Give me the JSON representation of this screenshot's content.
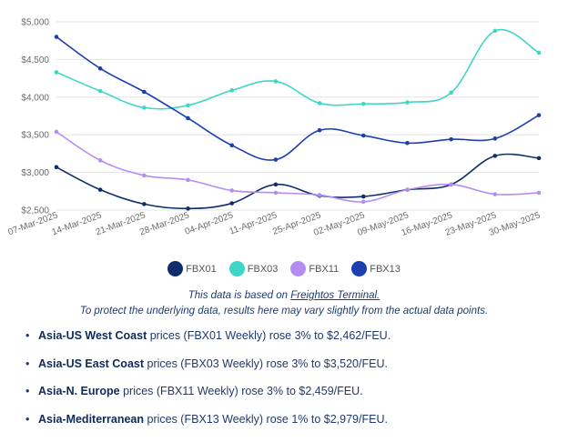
{
  "chart_data": {
    "type": "line",
    "categories": [
      "07-Mar-2025",
      "14-Mar-2025",
      "21-Mar-2025",
      "28-Mar-2025",
      "04-Apr-2025",
      "11-Apr-2025",
      "25-Apr-2025",
      "02-May-2025",
      "09-May-2025",
      "16-May-2025",
      "23-May-2025",
      "30-May-2025"
    ],
    "ylim": [
      2500,
      5000
    ],
    "yticks": [
      2500,
      3000,
      3500,
      4000,
      4500,
      5000
    ],
    "ytick_labels": [
      "$2,500",
      "$3,000",
      "$3,500",
      "$4,000",
      "$4,500",
      "$5,000"
    ],
    "grid": true,
    "legend_position": "bottom",
    "series": [
      {
        "name": "FBX01",
        "color": "#0f2d6b",
        "values": [
          3070,
          2770,
          2580,
          2520,
          2590,
          2840,
          2690,
          2680,
          2770,
          2840,
          3220,
          3190
        ]
      },
      {
        "name": "FBX03",
        "color": "#3dd6c8",
        "values": [
          4330,
          4080,
          3860,
          3890,
          4090,
          4210,
          3920,
          3910,
          3930,
          4060,
          4880,
          4590
        ]
      },
      {
        "name": "FBX11",
        "color": "#b58df2",
        "values": [
          3540,
          3160,
          2960,
          2900,
          2760,
          2730,
          2700,
          2610,
          2770,
          2840,
          2710,
          2730
        ]
      },
      {
        "name": "FBX13",
        "color": "#1c3fb0",
        "values": [
          4800,
          4380,
          4070,
          3720,
          3360,
          3170,
          3560,
          3490,
          3390,
          3440,
          3450,
          3760
        ]
      }
    ]
  },
  "note": {
    "line1_prefix": "This data is based on ",
    "line1_link": "Freightos Terminal.",
    "line2": "To protect the underlying data, results here may vary slightly from the actual data points."
  },
  "bullets": [
    {
      "bold": "Asia-US West Coast",
      "text": " prices (FBX01 Weekly) rose 3% to $2,462/FEU."
    },
    {
      "bold": "Asia-US East Coast",
      "text": " prices (FBX03 Weekly) rose 3% to $3,520/FEU."
    },
    {
      "bold": "Asia-N. Europe",
      "text": " prices (FBX11 Weekly) rose 3% to $2,459/FEU."
    },
    {
      "bold": "Asia-Mediterranean",
      "text": " prices (FBX13 Weekly) rose 1% to $2,979/FEU."
    }
  ]
}
